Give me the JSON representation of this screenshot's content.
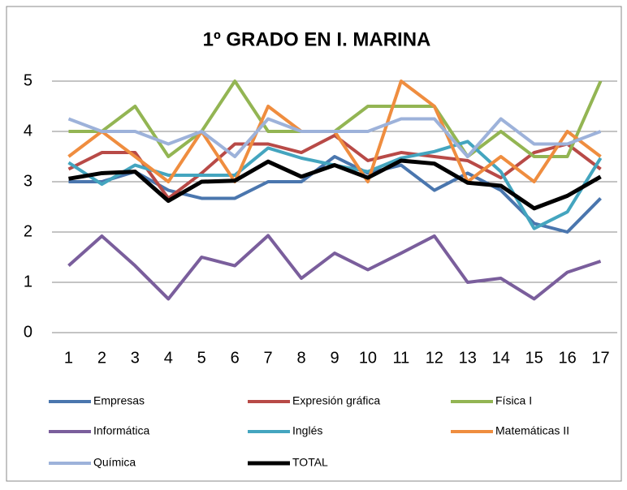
{
  "chart_data": {
    "type": "line",
    "title": "1º GRADO EN I. MARINA",
    "categories": [
      "1",
      "2",
      "3",
      "4",
      "5",
      "6",
      "7",
      "8",
      "9",
      "10",
      "11",
      "12",
      "13",
      "14",
      "15",
      "16",
      "17"
    ],
    "series": [
      {
        "name": "Empresas",
        "color": "#4a76ae",
        "width": 4,
        "values": [
          3.0,
          3.0,
          3.2,
          2.83,
          2.67,
          2.67,
          3.0,
          3.0,
          3.5,
          3.17,
          3.33,
          2.83,
          3.17,
          2.83,
          2.17,
          2.0,
          2.67
        ]
      },
      {
        "name": "Expresión gráfica",
        "color": "#b84a47",
        "width": 4,
        "values": [
          3.25,
          3.58,
          3.58,
          2.67,
          3.17,
          3.75,
          3.75,
          3.58,
          3.92,
          3.42,
          3.58,
          3.5,
          3.42,
          3.08,
          3.58,
          3.75,
          3.25
        ]
      },
      {
        "name": "Física I",
        "color": "#93b553",
        "width": 4,
        "values": [
          4,
          4,
          4.5,
          3.5,
          4,
          5,
          4,
          4,
          4,
          4.5,
          4.5,
          4.5,
          3.5,
          4,
          3.5,
          3.5,
          5
        ]
      },
      {
        "name": "Informática",
        "color": "#7a5e9c",
        "width": 4,
        "values": [
          1.33,
          1.92,
          1.33,
          0.67,
          1.5,
          1.33,
          1.93,
          1.08,
          1.58,
          1.25,
          1.58,
          1.92,
          1.0,
          1.08,
          0.67,
          1.2,
          1.42
        ]
      },
      {
        "name": "Inglés",
        "color": "#44a5bf",
        "width": 4,
        "values": [
          3.38,
          2.95,
          3.33,
          3.13,
          3.13,
          3.13,
          3.67,
          3.47,
          3.33,
          3.2,
          3.47,
          3.6,
          3.8,
          3.2,
          2.07,
          2.4,
          3.47
        ]
      },
      {
        "name": "Matemáticas II",
        "color": "#ef8d3f",
        "width": 4,
        "values": [
          3.5,
          4.0,
          3.5,
          3.0,
          4.0,
          3.0,
          4.5,
          4.0,
          4.0,
          3.0,
          5.0,
          4.5,
          3.0,
          3.5,
          3.0,
          4.0,
          3.5
        ]
      },
      {
        "name": "Química",
        "color": "#9db2da",
        "width": 4,
        "values": [
          4.25,
          4.0,
          4.0,
          3.75,
          4.0,
          3.5,
          4.25,
          4.0,
          4.0,
          4.0,
          4.25,
          4.25,
          3.5,
          4.25,
          3.75,
          3.75,
          4.0
        ]
      },
      {
        "name": "TOTAL",
        "color": "#000000",
        "width": 5,
        "values": [
          3.06,
          3.17,
          3.2,
          2.62,
          3.0,
          3.02,
          3.4,
          3.1,
          3.33,
          3.08,
          3.42,
          3.36,
          2.98,
          2.92,
          2.47,
          2.72,
          3.1
        ]
      }
    ],
    "ylim": [
      0,
      5
    ],
    "yticks": [
      0,
      1,
      2,
      3,
      4,
      5
    ],
    "grid": true,
    "legend": "bottom"
  }
}
